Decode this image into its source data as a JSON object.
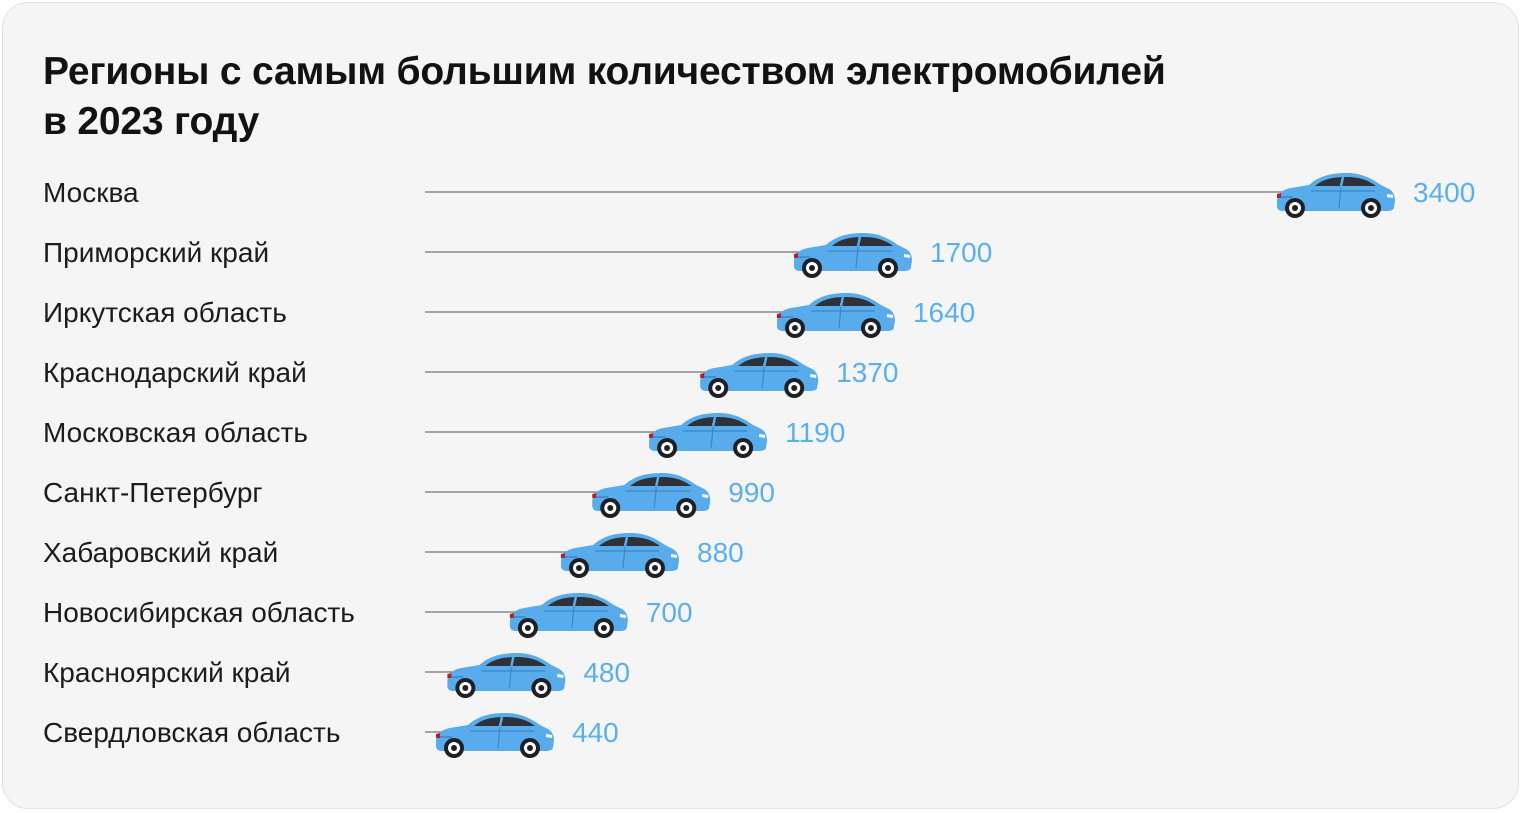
{
  "title_lines": [
    "Регионы с самым большим количеством электромобилей",
    "в 2023 году"
  ],
  "colors": {
    "car_body": "#59acec",
    "car_window": "#2e3138",
    "line": "#8a8a8e",
    "value_text": "#5aaff0",
    "label_text": "#1c1c1c",
    "background": "#f5f5f6"
  },
  "chart_data": {
    "type": "bar",
    "orientation": "horizontal",
    "title": "Регионы с самым большим количеством электромобилей в 2023 году",
    "categories": [
      "Москва",
      "Приморский край",
      "Иркутская область",
      "Краснодарский край",
      "Московская область",
      "Санкт-Петербург",
      "Хабаровский край",
      "Новосибирская область",
      "Красноярский край",
      "Свердловская область"
    ],
    "values": [
      3400,
      1700,
      1640,
      1370,
      1190,
      990,
      880,
      700,
      480,
      440
    ],
    "marker": "car-icon",
    "grid": false,
    "legend": "none"
  }
}
